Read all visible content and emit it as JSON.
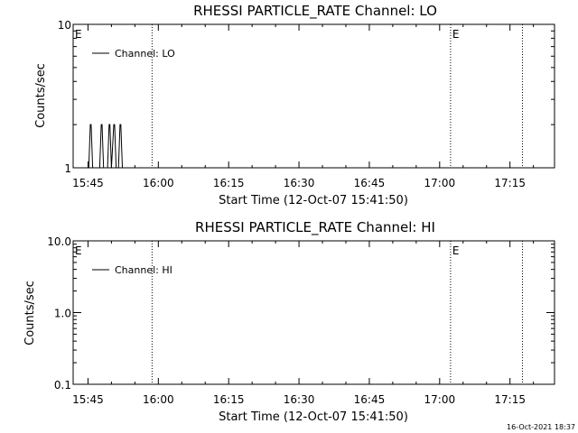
{
  "footer_timestamp": "16-Oct-2021 18:37",
  "chart_data": [
    {
      "type": "line",
      "title": "RHESSI PARTICLE_RATE Channel: LO",
      "xlabel": "Start Time (12-Oct-07 15:41:50)",
      "ylabel": "Counts/sec",
      "y_scale": "log",
      "ylim": [
        1,
        10
      ],
      "y_ticks": [
        {
          "value": 1,
          "label": "1"
        },
        {
          "value": 10,
          "label": "10"
        }
      ],
      "xlim": [
        "15:41:50",
        "17:24:30"
      ],
      "x_ticks": [
        "15:45",
        "16:00",
        "16:15",
        "16:30",
        "16:45",
        "17:00",
        "17:15"
      ],
      "legend": {
        "placement": "top-left",
        "entries": [
          "Channel: LO"
        ]
      },
      "vlines": [
        "15:58:40",
        "17:02:20",
        "17:17:40"
      ],
      "e_markers": [
        "15:41:50",
        "17:02:20"
      ],
      "series": [
        {
          "name": "Channel: LO",
          "color": "#000000",
          "x": [
            "15:45:10",
            "15:45:30",
            "15:45:40",
            "15:46:00",
            "15:47:30",
            "15:47:50",
            "15:48:00",
            "15:48:20",
            "15:49:10",
            "15:49:30",
            "15:49:40",
            "15:50:00",
            "15:50:00",
            "15:50:30",
            "15:50:40",
            "15:51:00",
            "15:51:30",
            "15:51:50",
            "15:52:00",
            "15:52:20"
          ],
          "y": [
            1,
            2,
            2,
            1,
            1,
            2,
            2,
            1,
            1,
            2,
            2,
            1,
            1,
            2,
            2,
            1,
            1,
            2,
            2,
            1
          ]
        }
      ]
    },
    {
      "type": "line",
      "title": "RHESSI PARTICLE_RATE Channel: HI",
      "xlabel": "Start Time (12-Oct-07 15:41:50)",
      "ylabel": "Counts/sec",
      "y_scale": "log",
      "ylim": [
        0.1,
        10
      ],
      "y_ticks": [
        {
          "value": 0.1,
          "label": "0.1"
        },
        {
          "value": 1,
          "label": "1.0"
        },
        {
          "value": 10,
          "label": "10.0"
        }
      ],
      "xlim": [
        "15:41:50",
        "17:24:30"
      ],
      "x_ticks": [
        "15:45",
        "16:00",
        "16:15",
        "16:30",
        "16:45",
        "17:00",
        "17:15"
      ],
      "legend": {
        "placement": "top-left",
        "entries": [
          "Channel: HI"
        ]
      },
      "vlines": [
        "15:58:40",
        "17:02:20",
        "17:17:40"
      ],
      "e_markers": [
        "15:41:50",
        "17:02:20"
      ],
      "series": [
        {
          "name": "Channel: HI",
          "color": "#000000",
          "x": [],
          "y": []
        }
      ]
    }
  ]
}
